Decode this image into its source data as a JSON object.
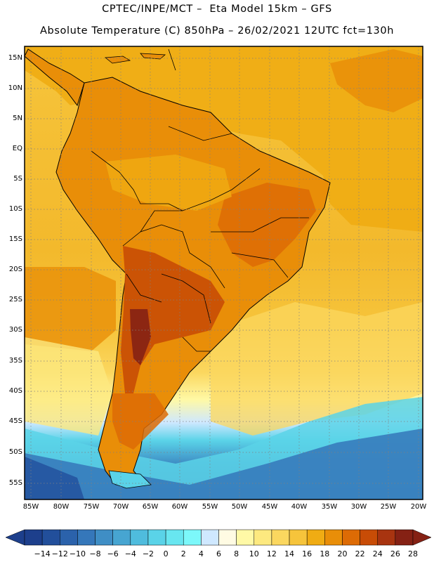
{
  "title_line1": "CPTEC/INPE/MCT –  Eta Model 15km – GFS",
  "title_line2": "Absolute Temperature (C) 850hPa – 26/02/2021 12UTC fct=130h",
  "lat_labels": [
    "15N",
    "10N",
    "5N",
    "EQ",
    "5S",
    "10S",
    "15S",
    "20S",
    "25S",
    "30S",
    "35S",
    "40S",
    "45S",
    "50S",
    "55S"
  ],
  "lon_labels": [
    "85W",
    "80W",
    "75W",
    "70W",
    "65W",
    "60W",
    "55W",
    "50W",
    "45W",
    "40W",
    "35W",
    "30W",
    "25W",
    "20W"
  ],
  "colorbar_labels": [
    "-14",
    "-12",
    "-10",
    "-8",
    "-6",
    "-4",
    "-2",
    "0",
    "2",
    "4",
    "6",
    "8",
    "10",
    "12",
    "14",
    "16",
    "18",
    "20",
    "22",
    "24",
    "26",
    "28"
  ],
  "colorbar_colors": [
    "#1d3f8c",
    "#224f9b",
    "#2b62ab",
    "#3577ba",
    "#3f8ec5",
    "#47a5d1",
    "#4fbcdd",
    "#5ad3e8",
    "#68e6f0",
    "#7cf8fa",
    "#cfe8ff",
    "#fffbe3",
    "#fff9a6",
    "#fde97f",
    "#fbd75f",
    "#f6c43b",
    "#f0ac13",
    "#e98e08",
    "#dd6b05",
    "#c84c06",
    "#a83410",
    "#852114"
  ]
}
